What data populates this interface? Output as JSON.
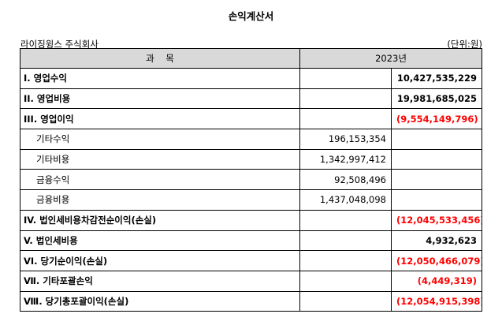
{
  "title": "손익계산서",
  "company": "라이징윙스 주식회사",
  "unit": "(단위:원)",
  "header": {
    "item": "과    목",
    "year": "2023년"
  },
  "rows": [
    {
      "label": "I. 영업수익",
      "sub": "",
      "total": "10,427,535,229",
      "bold": true,
      "negative": false
    },
    {
      "label": "II. 영업비용",
      "sub": "",
      "total": "19,981,685,025",
      "bold": true,
      "negative": false
    },
    {
      "label": "III. 영업이익",
      "sub": "",
      "total": "(9,554,149,796)",
      "bold": true,
      "negative": true
    },
    {
      "label": "기타수익",
      "sub": "196,153,354",
      "total": "",
      "bold": false,
      "negative": false
    },
    {
      "label": "기타비용",
      "sub": "1,342,997,412",
      "total": "",
      "bold": false,
      "negative": false
    },
    {
      "label": "금융수익",
      "sub": "92,508,496",
      "total": "",
      "bold": false,
      "negative": false
    },
    {
      "label": "금융비용",
      "sub": "1,437,048,098",
      "total": "",
      "bold": false,
      "negative": false
    },
    {
      "label": "IV. 법인세비용차감전순이익(손실)",
      "sub": "",
      "total": "(12,045,533,456)",
      "bold": true,
      "negative": true
    },
    {
      "label": "V. 법인세비용",
      "sub": "",
      "total": "4,932,623",
      "bold": true,
      "negative": false
    },
    {
      "label": "VI. 당기순이익(손실)",
      "sub": "",
      "total": "(12,050,466,079)",
      "bold": true,
      "negative": true
    },
    {
      "label": "Ⅶ. 기타포괄손익",
      "sub": "",
      "total": "(4,449,319)",
      "bold": true,
      "negative": true
    },
    {
      "label": "Ⅷ. 당기총포괄이익(손실)",
      "sub": "",
      "total": "(12,054,915,398)",
      "bold": true,
      "negative": true
    }
  ]
}
